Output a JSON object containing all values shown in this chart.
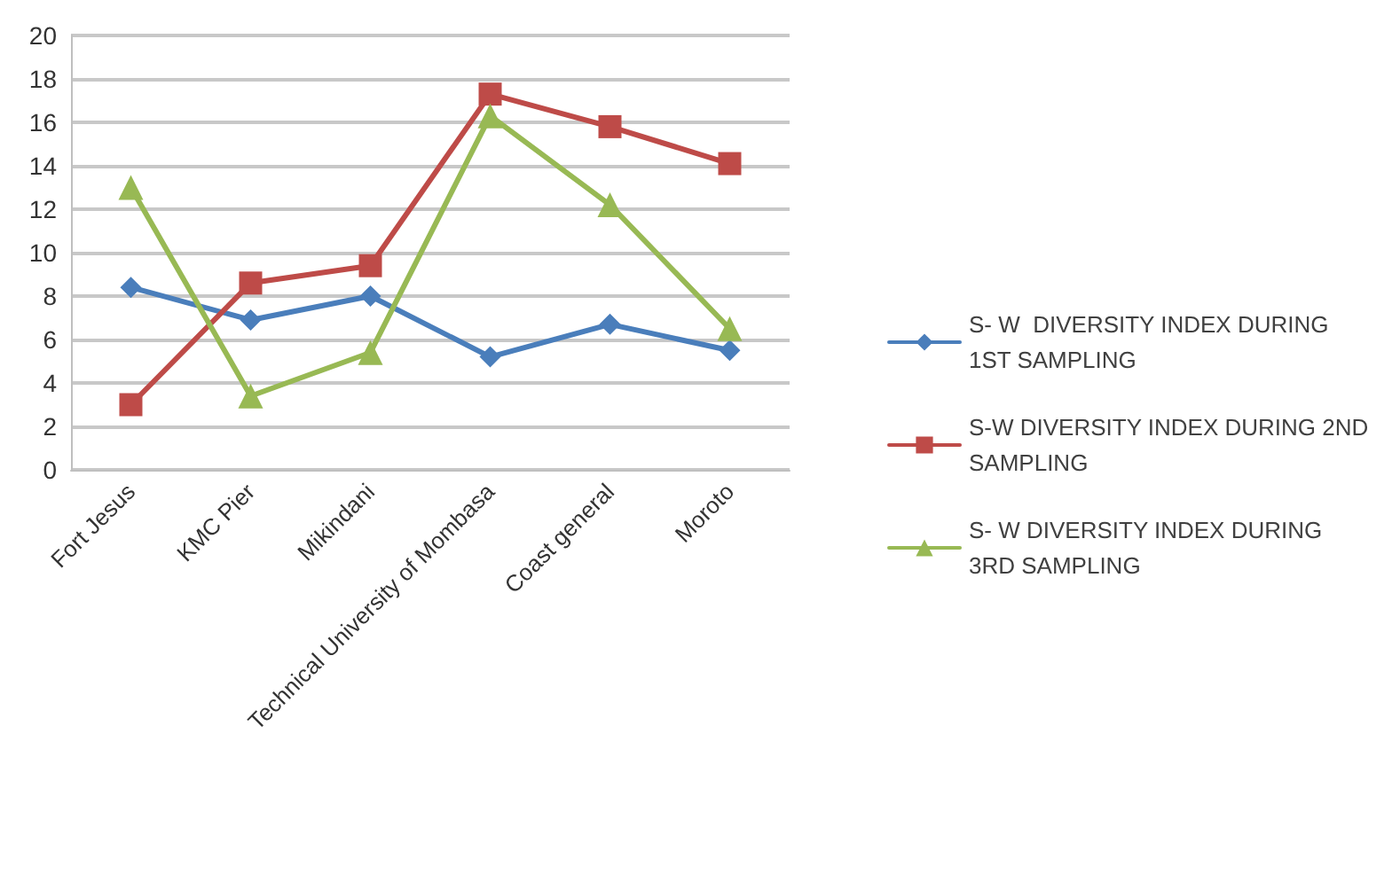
{
  "chart_data": {
    "type": "line",
    "categories": [
      "Fort Jesus",
      "KMC Pier",
      "Mikindani",
      "Technical University of Mombasa",
      "Coast general",
      "Moroto"
    ],
    "series": [
      {
        "name": "S- W  DIVERSITY INDEX DURING 1ST SAMPLING",
        "color": "#4a7ebb",
        "marker": "diamond",
        "values": [
          8.4,
          6.9,
          8.0,
          5.2,
          6.7,
          5.5
        ]
      },
      {
        "name": "S-W DIVERSITY INDEX DURING 2ND SAMPLING",
        "color": "#be4b48",
        "marker": "square",
        "values": [
          3.0,
          8.6,
          9.4,
          17.3,
          15.8,
          14.1
        ]
      },
      {
        "name": "S- W DIVERSITY INDEX DURING 3RD SAMPLING",
        "color": "#98b954",
        "marker": "triangle",
        "values": [
          13.0,
          3.4,
          5.4,
          16.3,
          12.2,
          6.5
        ]
      }
    ],
    "ylim": [
      0,
      20
    ],
    "yticks": [
      0,
      2,
      4,
      6,
      8,
      10,
      12,
      14,
      16,
      18,
      20
    ],
    "grid": "y",
    "legend": "right",
    "line_style": "solid"
  }
}
